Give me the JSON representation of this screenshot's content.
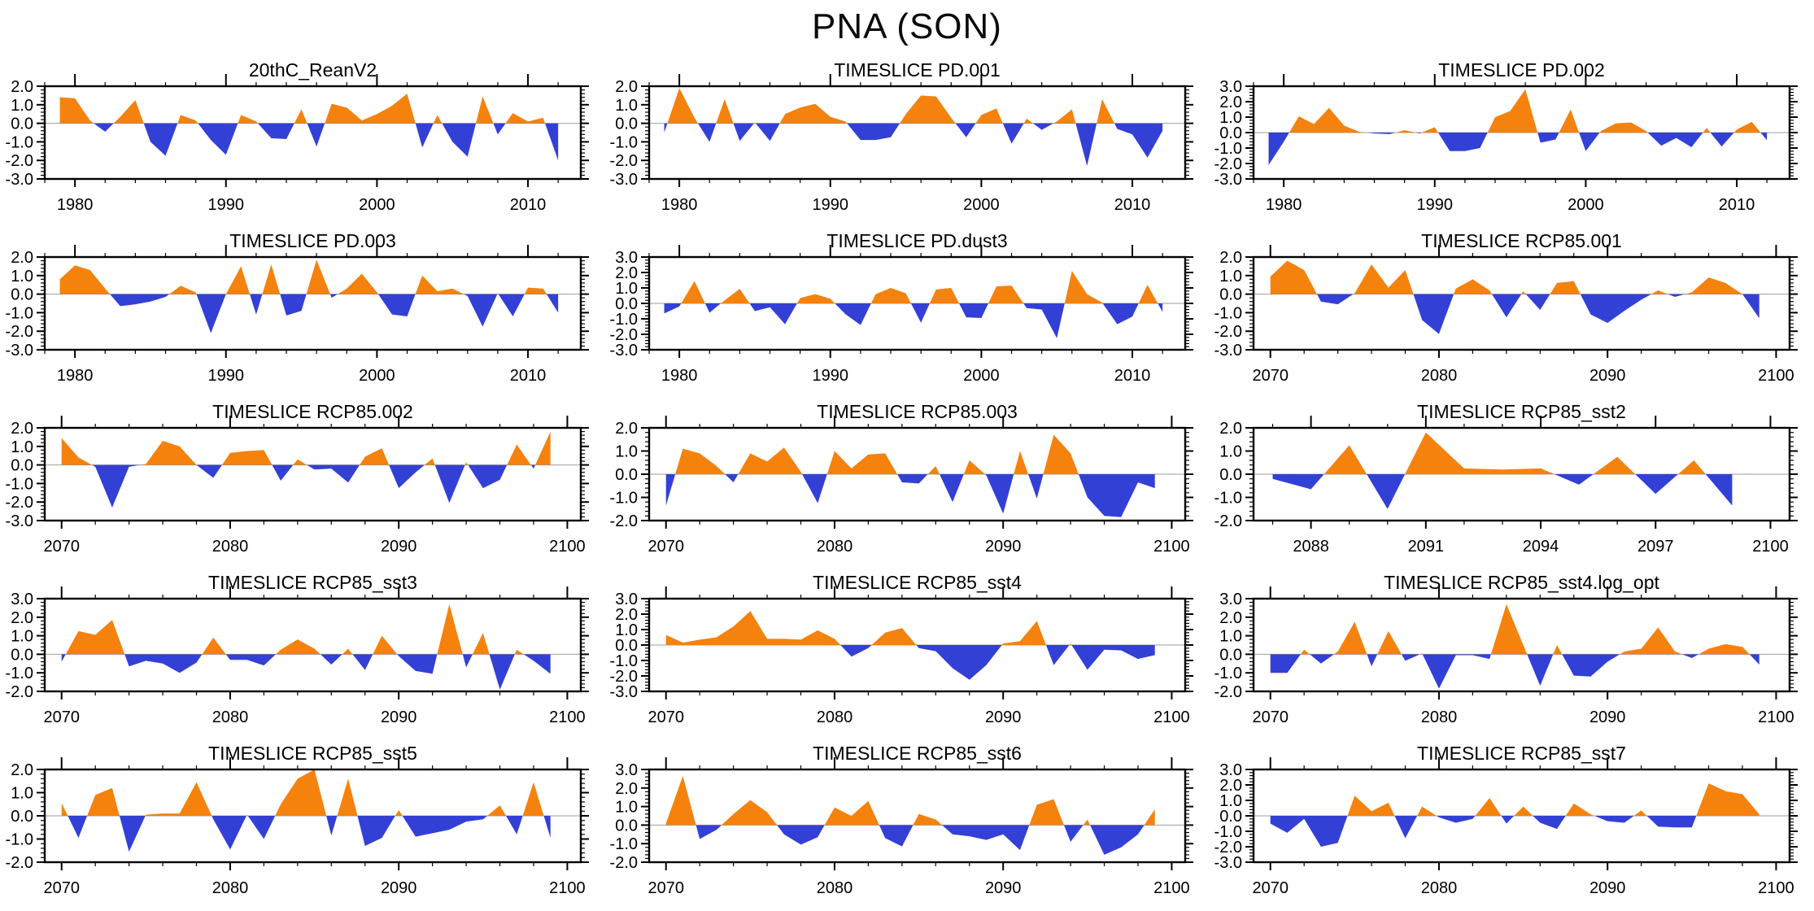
{
  "page": {
    "title": "PNA (SON)"
  },
  "colors": {
    "positive_fill": "#F5820D",
    "negative_fill": "#3340D6",
    "axis": "#000000",
    "zero_line": "#9e9e9e"
  },
  "chart_data": [
    {
      "type": "area",
      "title": "20thC_ReanV2",
      "x_start": 1979,
      "x_step": 1,
      "xlim": [
        1978,
        2013.5
      ],
      "ylim": [
        -3,
        2
      ],
      "xticks": [
        1980,
        1990,
        2000,
        2010
      ],
      "x_minor_step": 2,
      "yticks": [
        2,
        1,
        0,
        -1,
        -2,
        -3
      ],
      "y_minor_step": 0.2,
      "grid": false,
      "legend": "none",
      "values": [
        1.4,
        1.35,
        0.15,
        -0.45,
        0.35,
        1.25,
        -1.0,
        -1.75,
        0.45,
        0.15,
        -0.9,
        -1.7,
        0.45,
        0.1,
        -0.8,
        -0.85,
        0.75,
        -1.25,
        1.05,
        0.85,
        0.15,
        0.5,
        0.95,
        1.6,
        -1.3,
        0.45,
        -1.0,
        -1.8,
        1.45,
        -0.6,
        0.55,
        0.1,
        0.3,
        -2.0
      ]
    },
    {
      "type": "area",
      "title": "TIMESLICE PD.001",
      "x_start": 1979,
      "x_step": 1,
      "xlim": [
        1978,
        2013.5
      ],
      "ylim": [
        -3,
        2
      ],
      "xticks": [
        1980,
        1990,
        2000,
        2010
      ],
      "x_minor_step": 2,
      "yticks": [
        2,
        1,
        0,
        -1,
        -2,
        -3
      ],
      "y_minor_step": 0.2,
      "grid": false,
      "legend": "none",
      "values": [
        -0.5,
        1.9,
        0.3,
        -1.0,
        1.3,
        -0.95,
        0.05,
        -0.95,
        0.5,
        0.85,
        1.05,
        0.35,
        0.1,
        -0.9,
        -0.9,
        -0.75,
        0.5,
        1.5,
        1.45,
        0.3,
        -0.75,
        0.45,
        0.8,
        -1.1,
        0.25,
        -0.35,
        0.1,
        0.75,
        -2.3,
        1.3,
        -0.3,
        -0.6,
        -1.85,
        -0.4
      ]
    },
    {
      "type": "area",
      "title": "TIMESLICE PD.002",
      "x_start": 1979,
      "x_step": 1,
      "xlim": [
        1978,
        2013.5
      ],
      "ylim": [
        -3,
        3
      ],
      "xticks": [
        1980,
        1990,
        2000,
        2010
      ],
      "x_minor_step": 2,
      "yticks": [
        3,
        2,
        1,
        0,
        -1,
        -2,
        -3
      ],
      "y_minor_step": 0.2,
      "grid": false,
      "legend": "none",
      "values": [
        -2.1,
        -0.6,
        1.05,
        0.55,
        1.6,
        0.45,
        0.05,
        -0.05,
        -0.1,
        0.15,
        -0.05,
        0.35,
        -1.2,
        -1.2,
        -1.0,
        1.0,
        1.4,
        2.8,
        -0.65,
        -0.45,
        1.5,
        -1.2,
        0.1,
        0.6,
        0.65,
        0.1,
        -0.85,
        -0.35,
        -0.95,
        0.3,
        -0.9,
        0.2,
        0.7,
        -0.5
      ]
    },
    {
      "type": "area",
      "title": "TIMESLICE PD.003",
      "x_start": 1979,
      "x_step": 1,
      "xlim": [
        1978,
        2013.5
      ],
      "ylim": [
        -3,
        2
      ],
      "xticks": [
        1980,
        1990,
        2000,
        2010
      ],
      "x_minor_step": 2,
      "yticks": [
        2,
        1,
        0,
        -1,
        -2,
        -3
      ],
      "y_minor_step": 0.2,
      "grid": false,
      "legend": "none",
      "values": [
        0.8,
        1.55,
        1.3,
        0.3,
        -0.65,
        -0.55,
        -0.4,
        -0.15,
        0.45,
        0.1,
        -2.1,
        0.0,
        1.5,
        -1.1,
        1.6,
        -1.15,
        -0.9,
        1.85,
        -0.2,
        0.3,
        1.1,
        0.1,
        -1.1,
        -1.2,
        1.0,
        0.15,
        0.3,
        -0.1,
        -1.75,
        0.05,
        -1.2,
        0.35,
        0.3,
        -1.0
      ]
    },
    {
      "type": "area",
      "title": "TIMESLICE PD.dust3",
      "x_start": 1979,
      "x_step": 1,
      "xlim": [
        1978,
        2013.5
      ],
      "ylim": [
        -3,
        3
      ],
      "xticks": [
        1980,
        1990,
        2000,
        2010
      ],
      "x_minor_step": 2,
      "yticks": [
        3,
        2,
        1,
        0,
        -1,
        -2,
        -3
      ],
      "y_minor_step": 0.2,
      "grid": false,
      "legend": "none",
      "values": [
        -0.65,
        -0.2,
        1.45,
        -0.6,
        0.2,
        0.95,
        -0.5,
        -0.25,
        -1.35,
        0.35,
        0.6,
        0.3,
        -0.7,
        -1.4,
        0.6,
        1.0,
        0.65,
        -1.25,
        0.9,
        1.0,
        -0.9,
        -0.95,
        1.1,
        1.15,
        -0.3,
        -0.4,
        -2.25,
        2.1,
        0.6,
        0.05,
        -1.35,
        -0.85,
        1.2,
        -0.55
      ]
    },
    {
      "type": "area",
      "title": "TIMESLICE RCP85.001",
      "x_start": 2070,
      "x_step": 1,
      "xlim": [
        2069,
        2100.8
      ],
      "ylim": [
        -3,
        2
      ],
      "xticks": [
        2070,
        2080,
        2090,
        2100
      ],
      "x_minor_step": 2,
      "yticks": [
        2,
        1,
        0,
        -1,
        -2,
        -3
      ],
      "y_minor_step": 0.2,
      "grid": false,
      "legend": "none",
      "values": [
        0.95,
        1.8,
        1.3,
        -0.4,
        -0.55,
        0.05,
        1.6,
        0.35,
        1.3,
        -1.4,
        -2.15,
        0.3,
        0.8,
        0.2,
        -1.25,
        0.15,
        -0.85,
        0.6,
        0.7,
        -1.1,
        -1.55,
        -0.9,
        -0.3,
        0.2,
        -0.15,
        0.1,
        0.9,
        0.6,
        0.0,
        -1.3
      ]
    },
    {
      "type": "area",
      "title": "TIMESLICE RCP85.002",
      "x_start": 2070,
      "x_step": 1,
      "xlim": [
        2069,
        2100.8
      ],
      "ylim": [
        -3,
        2
      ],
      "xticks": [
        2070,
        2080,
        2090,
        2100
      ],
      "x_minor_step": 2,
      "yticks": [
        2,
        1,
        0,
        -1,
        -2,
        -3
      ],
      "y_minor_step": 0.2,
      "grid": false,
      "legend": "none",
      "values": [
        1.45,
        0.4,
        -0.1,
        -2.3,
        -0.1,
        0.05,
        1.3,
        1.0,
        0.0,
        -0.7,
        0.65,
        0.75,
        0.8,
        -0.85,
        0.3,
        -0.25,
        -0.2,
        -0.95,
        0.45,
        0.9,
        -1.25,
        -0.4,
        0.35,
        -2.05,
        0.15,
        -1.25,
        -0.8,
        1.1,
        -0.2,
        1.8
      ]
    },
    {
      "type": "area",
      "title": "TIMESLICE RCP85.003",
      "x_start": 2070,
      "x_step": 1,
      "xlim": [
        2069,
        2100.8
      ],
      "ylim": [
        -2,
        2
      ],
      "xticks": [
        2070,
        2080,
        2090,
        2100
      ],
      "x_minor_step": 2,
      "yticks": [
        2,
        1,
        0,
        -1,
        -2
      ],
      "y_minor_step": 0.2,
      "grid": false,
      "legend": "none",
      "values": [
        -1.35,
        1.1,
        0.9,
        0.35,
        -0.35,
        0.9,
        0.55,
        1.15,
        0.1,
        -1.25,
        1.0,
        0.25,
        0.85,
        0.9,
        -0.35,
        -0.4,
        0.35,
        -1.2,
        0.6,
        -0.05,
        -1.7,
        1.0,
        -1.05,
        1.7,
        0.9,
        -1.0,
        -1.8,
        -1.85,
        -0.35,
        -0.6
      ]
    },
    {
      "type": "area",
      "title": "TIMESLICE RCP85_sst2",
      "x_start": 2087,
      "x_step": 1,
      "xlim": [
        2086.5,
        2100.5
      ],
      "ylim": [
        -2,
        2
      ],
      "xticks": [
        2088,
        2091,
        2094,
        2097,
        2100
      ],
      "x_minor_step": 1,
      "yticks": [
        2,
        1,
        0,
        -1,
        -2
      ],
      "y_minor_step": 0.2,
      "grid": false,
      "legend": "none",
      "values": [
        -0.2,
        -0.65,
        1.25,
        -1.5,
        1.8,
        0.25,
        0.2,
        0.25,
        -0.45,
        0.75,
        -0.85,
        0.6,
        -1.35
      ]
    },
    {
      "type": "area",
      "title": "TIMESLICE RCP85_sst3",
      "x_start": 2070,
      "x_step": 1,
      "xlim": [
        2069,
        2100.8
      ],
      "ylim": [
        -2,
        3
      ],
      "xticks": [
        2070,
        2080,
        2090,
        2100
      ],
      "x_minor_step": 2,
      "yticks": [
        3,
        2,
        1,
        0,
        -1,
        -2
      ],
      "y_minor_step": 0.2,
      "grid": false,
      "legend": "none",
      "values": [
        -0.4,
        1.25,
        1.05,
        1.85,
        -0.65,
        -0.35,
        -0.5,
        -1.0,
        -0.45,
        0.9,
        -0.3,
        -0.3,
        -0.6,
        0.25,
        0.8,
        0.3,
        -0.55,
        0.3,
        -0.85,
        1.0,
        -0.1,
        -0.9,
        -1.05,
        2.7,
        -0.7,
        1.15,
        -1.9,
        0.25,
        -0.35,
        -1.05
      ]
    },
    {
      "type": "area",
      "title": "TIMESLICE RCP85_sst4",
      "x_start": 2070,
      "x_step": 1,
      "xlim": [
        2069,
        2100.8
      ],
      "ylim": [
        -3,
        3
      ],
      "xticks": [
        2070,
        2080,
        2090,
        2100
      ],
      "x_minor_step": 2,
      "yticks": [
        3,
        2,
        1,
        0,
        -1,
        -2,
        -3
      ],
      "y_minor_step": 0.2,
      "grid": false,
      "legend": "none",
      "values": [
        0.65,
        0.15,
        0.35,
        0.5,
        1.2,
        2.2,
        0.4,
        0.4,
        0.35,
        0.95,
        0.4,
        -0.75,
        -0.2,
        0.8,
        1.1,
        -0.2,
        -0.4,
        -1.5,
        -2.25,
        -1.3,
        0.1,
        0.25,
        1.55,
        -1.3,
        0.1,
        -1.6,
        -0.3,
        -0.35,
        -0.9,
        -0.65
      ]
    },
    {
      "type": "area",
      "title": "TIMESLICE RCP85_sst4.log_opt",
      "x_start": 2070,
      "x_step": 1,
      "xlim": [
        2069,
        2100.8
      ],
      "ylim": [
        -2,
        3
      ],
      "xticks": [
        2070,
        2080,
        2090,
        2100
      ],
      "x_minor_step": 2,
      "yticks": [
        3,
        2,
        1,
        0,
        -1,
        -2
      ],
      "y_minor_step": 0.2,
      "grid": false,
      "legend": "none",
      "values": [
        -1.0,
        -1.0,
        0.25,
        -0.5,
        0.15,
        1.75,
        -0.65,
        1.25,
        -0.35,
        0.05,
        -1.85,
        -0.05,
        -0.05,
        -0.25,
        2.7,
        0.5,
        -1.7,
        0.5,
        -1.15,
        -1.2,
        -0.4,
        0.15,
        0.3,
        1.45,
        0.15,
        -0.2,
        0.3,
        0.55,
        0.4,
        -0.55
      ]
    },
    {
      "type": "area",
      "title": "TIMESLICE RCP85_sst5",
      "x_start": 2070,
      "x_step": 1,
      "xlim": [
        2069,
        2100.8
      ],
      "ylim": [
        -2,
        2
      ],
      "xticks": [
        2070,
        2080,
        2090,
        2100
      ],
      "x_minor_step": 2,
      "yticks": [
        2,
        1,
        0,
        -1,
        -2
      ],
      "y_minor_step": 0.2,
      "grid": false,
      "legend": "none",
      "values": [
        0.55,
        -0.95,
        0.9,
        1.2,
        -1.55,
        0.05,
        0.1,
        0.1,
        1.45,
        -0.15,
        -1.45,
        0.05,
        -1.0,
        0.5,
        1.6,
        2.0,
        -0.85,
        1.6,
        -1.3,
        -0.95,
        0.25,
        -0.9,
        -0.75,
        -0.6,
        -0.25,
        -0.15,
        0.45,
        -0.8,
        1.45,
        -0.95
      ]
    },
    {
      "type": "area",
      "title": "TIMESLICE RCP85_sst6",
      "x_start": 2070,
      "x_step": 1,
      "xlim": [
        2069,
        2100.8
      ],
      "ylim": [
        -2,
        3
      ],
      "xticks": [
        2070,
        2080,
        2090,
        2100
      ],
      "x_minor_step": 2,
      "yticks": [
        3,
        2,
        1,
        0,
        -1,
        -2
      ],
      "y_minor_step": 0.2,
      "grid": false,
      "legend": "none",
      "values": [
        0.1,
        2.65,
        -0.75,
        -0.25,
        0.6,
        1.35,
        0.7,
        -0.5,
        -1.05,
        -0.65,
        0.95,
        0.5,
        1.3,
        -0.7,
        -1.15,
        0.6,
        0.3,
        -0.5,
        -0.6,
        -0.8,
        -0.5,
        -1.35,
        1.1,
        1.4,
        -0.9,
        0.3,
        -1.6,
        -1.2,
        -0.5,
        0.85
      ]
    },
    {
      "type": "area",
      "title": "TIMESLICE RCP85_sst7",
      "x_start": 2070,
      "x_step": 1,
      "xlim": [
        2069,
        2100.8
      ],
      "ylim": [
        -3,
        3
      ],
      "xticks": [
        2070,
        2080,
        2090,
        2100
      ],
      "x_minor_step": 2,
      "yticks": [
        3,
        2,
        1,
        0,
        -1,
        -2,
        -3
      ],
      "y_minor_step": 0.2,
      "grid": false,
      "legend": "none",
      "values": [
        -0.5,
        -1.1,
        -0.2,
        -2.0,
        -1.75,
        1.3,
        0.3,
        0.85,
        -1.45,
        0.6,
        -0.1,
        -0.45,
        -0.2,
        1.15,
        -0.5,
        0.6,
        -0.45,
        -0.85,
        0.8,
        0.1,
        -0.35,
        -0.45,
        0.35,
        -0.7,
        -0.75,
        -0.75,
        2.1,
        1.6,
        1.4,
        0.1
      ]
    }
  ]
}
